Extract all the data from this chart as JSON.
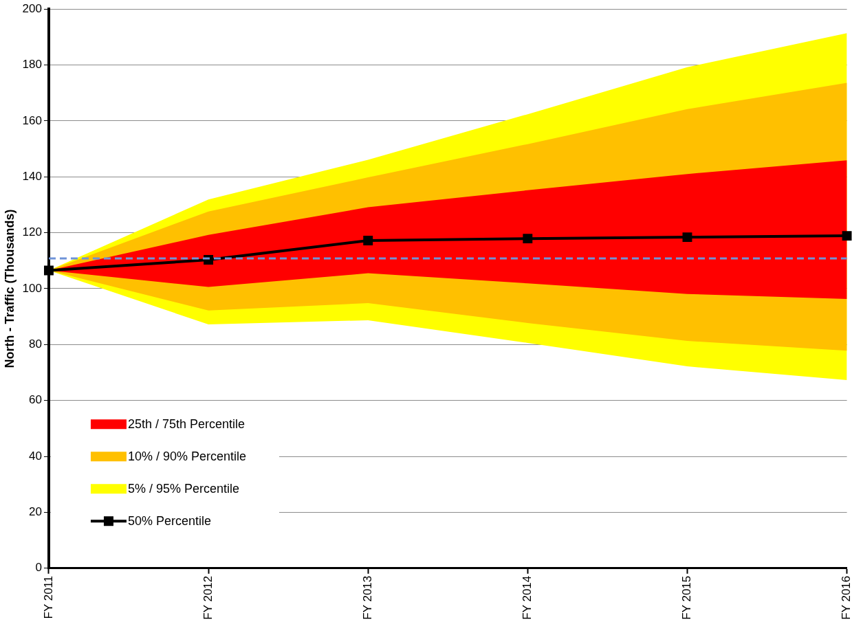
{
  "chart_data": {
    "type": "line",
    "ylabel": "North - Traffic (Thousands)",
    "categories": [
      "FY 2011",
      "FY 2012",
      "FY 2013",
      "FY 2014",
      "FY 2015",
      "FY 2016"
    ],
    "ylim": [
      0,
      200
    ],
    "yticks": [
      0,
      20,
      40,
      60,
      80,
      100,
      120,
      140,
      160,
      180,
      200
    ],
    "grid": "y",
    "legend": "bottom left",
    "ref_lines": [
      {
        "axis": "y",
        "value": 110.8,
        "color": "#6f93d8",
        "line_style": "dashed"
      }
    ],
    "series": [
      {
        "name": "25th / 75th Percentile",
        "type": "area",
        "color": "#ff0000",
        "values": [
          null,
          null,
          null,
          null,
          null,
          null
        ],
        "lower": [
          106.5,
          100.6,
          105.5,
          101.9,
          98.1,
          96.3
        ],
        "upper": [
          106.5,
          119.2,
          129.1,
          135.2,
          141.0,
          145.9
        ]
      },
      {
        "name": "10% / 90% Percentile",
        "type": "area",
        "color": "#ffc000",
        "values": [
          null,
          null,
          null,
          null,
          null,
          null
        ],
        "lower": [
          106.5,
          92.2,
          94.8,
          87.7,
          81.3,
          77.8
        ],
        "upper": [
          106.5,
          127.6,
          139.8,
          151.7,
          164.2,
          173.6
        ]
      },
      {
        "name": "5% / 95% Percentile",
        "type": "area",
        "color": "#ffff00",
        "values": [
          null,
          null,
          null,
          null,
          null,
          null
        ],
        "lower": [
          106.5,
          87.2,
          88.7,
          80.6,
          72.2,
          67.3
        ],
        "upper": [
          106.5,
          131.9,
          146.1,
          162.4,
          179.2,
          191.4
        ]
      },
      {
        "name": "50% Percentile",
        "type": "line",
        "marker": "square",
        "color": "#000000",
        "values": [
          106.5,
          110.3,
          117.2,
          117.9,
          118.4,
          118.9
        ]
      }
    ]
  }
}
